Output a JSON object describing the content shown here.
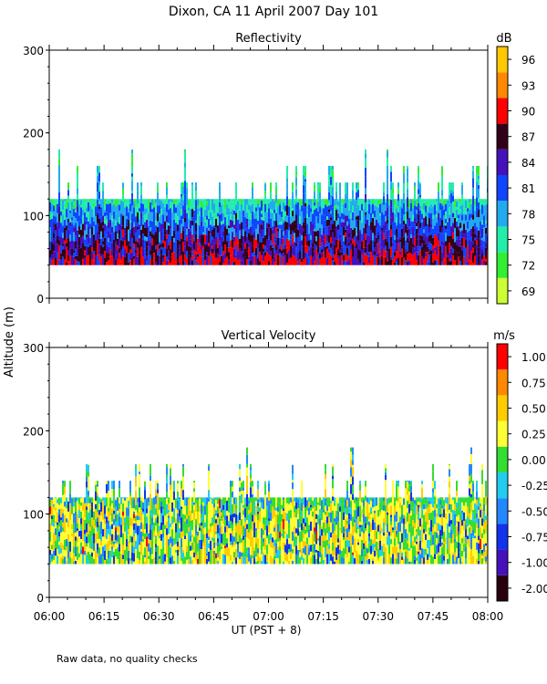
{
  "figure": {
    "title": "Dixon, CA 11 April 2007  Day 101",
    "ylabel": "Altitude (m)",
    "xlabel": "UT  (PST + 8)",
    "footnote": "Raw data, no quality checks"
  },
  "chart_data": [
    {
      "type": "heatmap",
      "title": "Reflectivity",
      "colorbar_unit": "dB",
      "x_ticks": [
        "06:00",
        "06:15",
        "06:30",
        "06:45",
        "07:00",
        "07:15",
        "07:30",
        "07:45",
        "08:00"
      ],
      "xlim_minutes": [
        0,
        120
      ],
      "ylim": [
        0,
        300
      ],
      "y_ticks": [
        0,
        100,
        200,
        300
      ],
      "data_floor_m": 40,
      "colorbar": {
        "labels": [
          "69",
          "72",
          "75",
          "78",
          "81",
          "84",
          "87",
          "90",
          "93",
          "96"
        ],
        "colors": [
          "#ccff33",
          "#33ee33",
          "#22eeaa",
          "#22aaee",
          "#1144ff",
          "#4411bb",
          "#33001a",
          "#ff0000",
          "#ff8800",
          "#ffc800"
        ]
      }
    },
    {
      "type": "heatmap",
      "title": "Vertical Velocity",
      "colorbar_unit": "m/s",
      "x_ticks": [
        "06:00",
        "06:15",
        "06:30",
        "06:45",
        "07:00",
        "07:15",
        "07:30",
        "07:45",
        "08:00"
      ],
      "xlim_minutes": [
        0,
        120
      ],
      "ylim": [
        0,
        300
      ],
      "y_ticks": [
        0,
        100,
        200,
        300
      ],
      "data_floor_m": 40,
      "colorbar": {
        "labels": [
          "-2.00",
          "-1.00",
          "-0.75",
          "-0.50",
          "-0.25",
          "0.00",
          "0.25",
          "0.50",
          "0.75",
          "1.00"
        ],
        "colors": [
          "#2a0010",
          "#4411bb",
          "#1133ee",
          "#2288ff",
          "#22ccee",
          "#33dd33",
          "#ffff33",
          "#ffcc00",
          "#ff8800",
          "#ff0000"
        ]
      }
    }
  ]
}
